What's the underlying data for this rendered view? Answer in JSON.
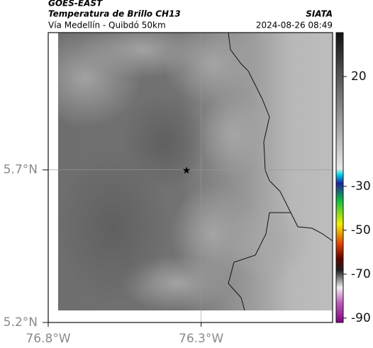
{
  "header": {
    "satellite": "GOES-EAST",
    "product": "Temperatura de Brillo CH13",
    "region": "Vía Medellín - Quibdó 50km",
    "agency": "SIATA",
    "timestamp": "2024-08-26 08:49"
  },
  "map": {
    "xlim": [
      -76.8,
      -75.87
    ],
    "ylim": [
      5.2,
      6.15
    ],
    "xticks": [
      {
        "value": -76.8,
        "label": "76.8°W"
      },
      {
        "value": -76.3,
        "label": "76.3°W"
      }
    ],
    "yticks": [
      {
        "value": 5.2,
        "label": "5.2°N"
      },
      {
        "value": 5.7,
        "label": "5.7°N"
      }
    ],
    "grid": true
  },
  "colorbar": {
    "clim": [
      -92,
      40
    ],
    "ticks": [
      20,
      -30,
      -50,
      -70,
      -90
    ]
  }
}
